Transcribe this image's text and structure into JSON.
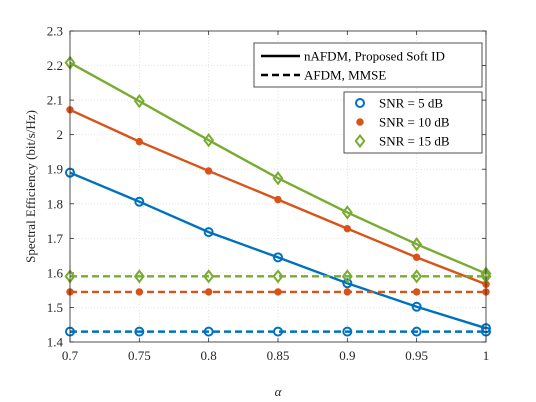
{
  "chart_data": {
    "type": "line",
    "xlabel": "α",
    "ylabel": "Spectral Efficiency (bit/s/Hz)",
    "x": [
      0.7,
      0.75,
      0.8,
      0.85,
      0.9,
      0.95,
      1.0
    ],
    "xlim": [
      0.7,
      1.0
    ],
    "ylim": [
      1.4,
      2.3
    ],
    "xticks": [
      "0.7",
      "0.75",
      "0.8",
      "0.85",
      "0.9",
      "0.95",
      "1"
    ],
    "yticks": [
      "1.4",
      "1.5",
      "1.6",
      "1.7",
      "1.8",
      "1.9",
      "2",
      "2.1",
      "2.2",
      "2.3"
    ],
    "grid": true,
    "series": [
      {
        "snr": "SNR = 5 dB",
        "method": "nAFDM, Proposed Soft ID",
        "color": "#0072BD",
        "marker": "circle",
        "values": [
          1.89,
          1.806,
          1.718,
          1.645,
          1.57,
          1.502,
          1.44
        ]
      },
      {
        "snr": "SNR = 10 dB",
        "method": "nAFDM, Proposed Soft ID",
        "color": "#D95319",
        "marker": "dot",
        "values": [
          2.072,
          1.98,
          1.895,
          1.812,
          1.728,
          1.645,
          1.567
        ]
      },
      {
        "snr": "SNR = 15 dB",
        "method": "nAFDM, Proposed Soft ID",
        "color": "#77AC30",
        "marker": "diamond",
        "values": [
          2.208,
          2.097,
          1.984,
          1.874,
          1.775,
          1.683,
          1.598
        ]
      },
      {
        "snr": "SNR = 5 dB",
        "method": "AFDM, MMSE",
        "color": "#0072BD",
        "marker": "circle",
        "values": [
          1.43,
          1.43,
          1.43,
          1.43,
          1.43,
          1.43,
          1.43
        ]
      },
      {
        "snr": "SNR = 10 dB",
        "method": "AFDM, MMSE",
        "color": "#D95319",
        "marker": "dot",
        "values": [
          1.545,
          1.545,
          1.545,
          1.545,
          1.545,
          1.545,
          1.545
        ]
      },
      {
        "snr": "SNR = 15 dB",
        "method": "AFDM, MMSE",
        "color": "#77AC30",
        "marker": "diamond",
        "values": [
          1.59,
          1.59,
          1.59,
          1.59,
          1.59,
          1.59,
          1.59
        ]
      }
    ],
    "legend_methods": {
      "placement": "top-right",
      "entries": [
        {
          "label": "nAFDM, Proposed Soft ID",
          "style": "solid"
        },
        {
          "label": "AFDM, MMSE",
          "style": "dashed"
        }
      ]
    },
    "legend_snr": {
      "placement": "top-right",
      "entries": [
        {
          "label": "SNR = 5 dB",
          "color": "#0072BD",
          "marker": "circle"
        },
        {
          "label": "SNR = 10 dB",
          "color": "#D95319",
          "marker": "dot"
        },
        {
          "label": "SNR = 15 dB",
          "color": "#77AC30",
          "marker": "diamond"
        }
      ]
    }
  }
}
